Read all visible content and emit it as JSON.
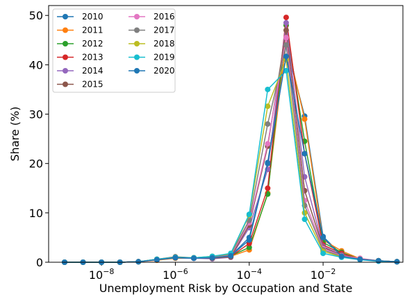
{
  "chart_data": {
    "type": "line",
    "xlabel": "Unemployment Risk by Occupation and State",
    "ylabel": "Share (%)",
    "x": [
      1e-09,
      3.162e-09,
      1e-08,
      3.162e-08,
      1e-07,
      3.162e-07,
      1e-06,
      3.162e-06,
      1e-05,
      3.162e-05,
      0.0001,
      0.0003162,
      0.001,
      0.003162,
      0.01,
      0.03162,
      0.1,
      0.3162,
      1
    ],
    "xscale": "log",
    "xlim": [
      3.7e-10,
      1.45
    ],
    "xticks": [
      {
        "value": 1e-08,
        "label": "10−8"
      },
      {
        "value": 1e-06,
        "label": "10−6"
      },
      {
        "value": 0.0001,
        "label": "10−4"
      },
      {
        "value": 0.01,
        "label": "10−2"
      }
    ],
    "ylim": [
      0,
      52
    ],
    "yticks": [
      0,
      10,
      20,
      30,
      40,
      50
    ],
    "legend": "upper left",
    "series": [
      {
        "name": "2010",
        "color": "#1f77b4",
        "values": [
          0,
          0,
          0,
          0,
          0.1,
          0.5,
          0.9,
          0.8,
          0.9,
          1.3,
          5,
          20.2,
          44,
          29.6,
          5.2,
          1.5,
          0.6,
          0.3,
          0.1
        ]
      },
      {
        "name": "2011",
        "color": "#ff7f0e",
        "values": [
          0,
          0,
          0,
          0,
          0.1,
          0.4,
          0.8,
          0.8,
          0.8,
          1.2,
          2.5,
          14,
          45,
          29,
          4.5,
          2.3,
          0.7,
          0.3,
          0.1
        ]
      },
      {
        "name": "2012",
        "color": "#2ca02c",
        "values": [
          0,
          0,
          0,
          0,
          0.1,
          0.5,
          0.9,
          0.8,
          0.9,
          1.3,
          3,
          13.8,
          48,
          24.5,
          4,
          2,
          0.6,
          0.3,
          0.1
        ]
      },
      {
        "name": "2013",
        "color": "#d62728",
        "values": [
          0,
          0,
          0,
          0,
          0.1,
          0.5,
          1,
          0.8,
          0.9,
          1.2,
          3.8,
          15,
          49.6,
          22,
          3.5,
          1.8,
          0.6,
          0.3,
          0.1
        ]
      },
      {
        "name": "2014",
        "color": "#9467bd",
        "values": [
          0,
          0,
          0,
          0,
          0.1,
          0.5,
          0.9,
          0.8,
          0.7,
          1,
          7,
          18.8,
          48.5,
          17.3,
          3.2,
          1.5,
          0.6,
          0.3,
          0.1
        ]
      },
      {
        "name": "2015",
        "color": "#8c564b",
        "values": [
          0,
          0,
          0,
          0,
          0.1,
          0.6,
          1.1,
          0.9,
          0.8,
          1.1,
          7.5,
          23.5,
          47,
          14.5,
          3,
          1.4,
          0.7,
          0.3,
          0.1
        ]
      },
      {
        "name": "2016",
        "color": "#e377c2",
        "values": [
          0,
          0,
          0,
          0,
          0.1,
          0.5,
          0.9,
          0.8,
          1,
          1.4,
          8,
          24,
          45.5,
          12.5,
          2.8,
          1.3,
          0.8,
          0.3,
          0.1
        ]
      },
      {
        "name": "2017",
        "color": "#7f7f7f",
        "values": [
          0,
          0,
          0,
          0,
          0.1,
          0.6,
          0.9,
          0.9,
          1.1,
          1.6,
          8.5,
          28,
          44,
          11.5,
          2.5,
          1.2,
          0.6,
          0.3,
          0.1
        ]
      },
      {
        "name": "2018",
        "color": "#bcbd22",
        "values": [
          0,
          0,
          0,
          0,
          0.1,
          0.6,
          1,
          0.9,
          1.2,
          1.7,
          9.5,
          31.6,
          41,
          10,
          2.2,
          1.1,
          0.6,
          0.3,
          0.1
        ]
      },
      {
        "name": "2019",
        "color": "#17becf",
        "values": [
          0,
          0,
          0,
          0,
          0.1,
          0.6,
          1,
          0.9,
          1.2,
          1.8,
          9.7,
          35,
          38.8,
          8.7,
          1.8,
          1,
          0.5,
          0.2,
          0.1
        ]
      },
      {
        "name": "2020",
        "color": "#1f77b4",
        "values": [
          0,
          0,
          0,
          0,
          0.1,
          0.5,
          0.9,
          0.8,
          0.9,
          1.3,
          4.5,
          20,
          41.7,
          22,
          5,
          1.2,
          0.6,
          0.3,
          0.1
        ]
      }
    ]
  }
}
